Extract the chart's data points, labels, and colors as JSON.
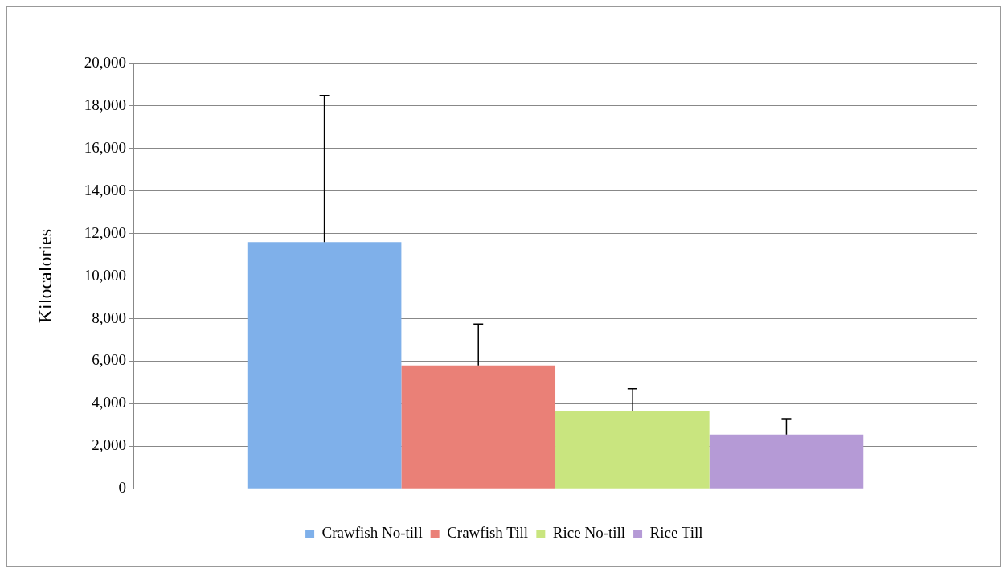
{
  "chart_data": {
    "type": "bar",
    "ylabel": "Kilocalories",
    "categories": [
      null
    ],
    "series": [
      {
        "name": "Crawfish No-till",
        "color": "#7fb0ea",
        "values": [
          11600
        ],
        "errors": [
          [
            11600,
            18500
          ]
        ]
      },
      {
        "name": "Crawfish Till",
        "color": "#ea8077",
        "values": [
          5800
        ],
        "errors": [
          [
            5800,
            7750
          ]
        ]
      },
      {
        "name": "Rice No-till",
        "color": "#c9e57f",
        "values": [
          3650
        ],
        "errors": [
          [
            3650,
            4700
          ]
        ]
      },
      {
        "name": "Rice Till",
        "color": "#b59ad6",
        "values": [
          2550
        ],
        "errors": [
          [
            2550,
            3300
          ]
        ]
      }
    ],
    "ylim": [
      0,
      20000
    ],
    "yticks": [
      {
        "value": 0,
        "label": "0"
      },
      {
        "value": 2000,
        "label": "2,000"
      },
      {
        "value": 4000,
        "label": "4,000"
      },
      {
        "value": 6000,
        "label": "6,000"
      },
      {
        "value": 8000,
        "label": "8,000"
      },
      {
        "value": 10000,
        "label": "10,000"
      },
      {
        "value": 12000,
        "label": "12,000"
      },
      {
        "value": 14000,
        "label": "14,000"
      },
      {
        "value": 16000,
        "label": "16,000"
      },
      {
        "value": 18000,
        "label": "18,000"
      },
      {
        "value": 20000,
        "label": "20,000"
      }
    ],
    "grid": "y",
    "legend": "bottom"
  }
}
